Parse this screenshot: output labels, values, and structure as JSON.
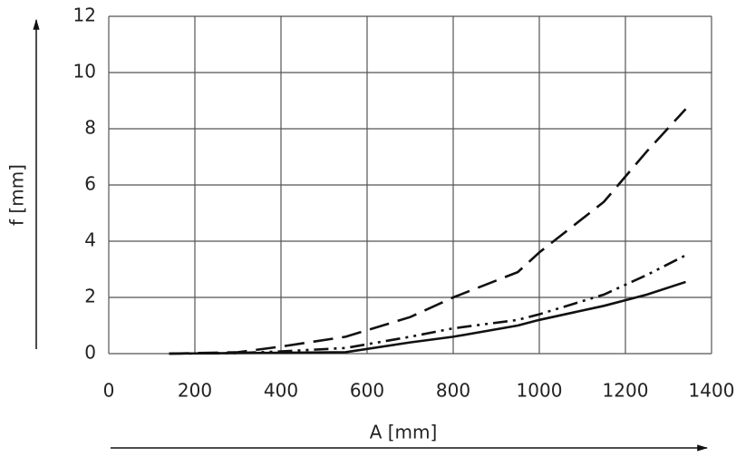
{
  "chart_data": {
    "type": "line",
    "x_label": "A [mm]",
    "y_label": "f [mm]",
    "x": [
      140,
      300,
      400,
      550,
      700,
      800,
      950,
      1000,
      1150,
      1250,
      1340
    ],
    "series": [
      {
        "color": "#111111",
        "linestyle": "dashed",
        "values": [
          0,
          0.05,
          0.25,
          0.6,
          1.3,
          2.0,
          2.9,
          3.6,
          5.4,
          7.2,
          8.7
        ]
      },
      {
        "color": "#111111",
        "linestyle": "dashdotdot",
        "values": [
          0,
          0.02,
          0.08,
          0.2,
          0.6,
          0.9,
          1.2,
          1.4,
          2.1,
          2.8,
          3.5
        ]
      },
      {
        "color": "#111111",
        "linestyle": "solid",
        "values": [
          0,
          0.02,
          0.03,
          0.05,
          0.4,
          0.6,
          1.0,
          1.2,
          1.7,
          2.1,
          2.55
        ]
      }
    ],
    "xlim": [
      0,
      1400
    ],
    "xticks": [
      0,
      200,
      400,
      600,
      800,
      1000,
      1200,
      1400
    ],
    "ylim": [
      0,
      12
    ],
    "yticks": [
      0,
      2,
      4,
      6,
      8,
      10,
      12
    ],
    "grid": true
  }
}
